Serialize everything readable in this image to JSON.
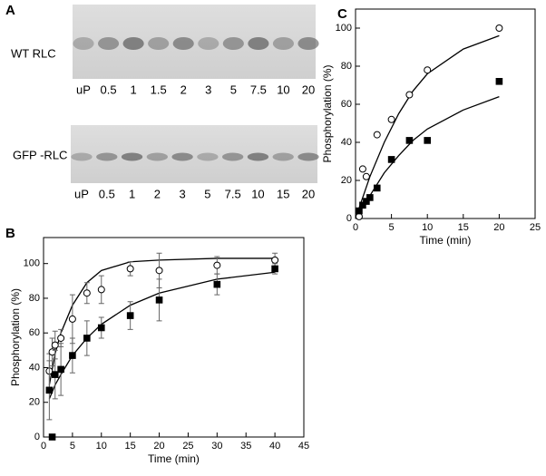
{
  "panel_labels": [
    "A",
    "B",
    "C"
  ],
  "gels": [
    {
      "label": "WT RLC",
      "lanes": [
        "uP",
        "0.5",
        "1",
        "1.5",
        "2",
        "3",
        "5",
        "7.5",
        "10",
        "20"
      ]
    },
    {
      "label": "GFP -RLC",
      "lanes": [
        "uP",
        "0.5",
        "1",
        "2",
        "3",
        "5",
        "7.5",
        "10",
        "15",
        "20"
      ]
    }
  ],
  "chart_data": [
    {
      "type": "scatter",
      "xlabel": "Time (min)",
      "ylabel": "Phosphorylation (%)",
      "xlim": [
        0,
        45
      ],
      "xticks": [
        0,
        5,
        10,
        15,
        20,
        25,
        30,
        35,
        40,
        45
      ],
      "ylim": [
        0,
        115
      ],
      "yticks": [
        0,
        20,
        40,
        60,
        80,
        100
      ],
      "series": [
        {
          "mode": "markers",
          "marker": "circle",
          "fill": "none",
          "color": "#000000",
          "x": [
            1,
            1.5,
            2,
            3,
            5,
            7.5,
            10,
            15,
            20,
            30,
            40
          ],
          "values": [
            38,
            49,
            53,
            57,
            68,
            83,
            85,
            97,
            96,
            99,
            102
          ],
          "errors": [
            10,
            8,
            8,
            5,
            14,
            6,
            8,
            4,
            10,
            5,
            4
          ]
        },
        {
          "mode": "markers",
          "marker": "square",
          "fill": "#000000",
          "color": "#000000",
          "x": [
            1,
            1.5,
            2,
            3,
            5,
            7.5,
            10,
            15,
            20,
            30,
            40
          ],
          "values": [
            27,
            0,
            36,
            39,
            47,
            57,
            63,
            70,
            79,
            88,
            97
          ],
          "errors": [
            17,
            null,
            14,
            15,
            10,
            10,
            6,
            8,
            12,
            6,
            3
          ]
        },
        {
          "mode": "line",
          "color": "#000000",
          "x": [
            1,
            2,
            3,
            5,
            7.5,
            10,
            15,
            20,
            30,
            40
          ],
          "values": [
            30,
            48,
            60,
            76,
            89,
            96,
            101,
            102,
            103,
            103
          ]
        },
        {
          "mode": "line",
          "color": "#000000",
          "x": [
            1,
            2,
            3,
            5,
            7.5,
            10,
            15,
            20,
            30,
            40
          ],
          "values": [
            22,
            30,
            36,
            47,
            57,
            65,
            76,
            83,
            91,
            95
          ]
        }
      ]
    },
    {
      "type": "scatter",
      "xlabel": "Time (min)",
      "ylabel": "Phosphorylation (%)",
      "xlim": [
        0,
        25
      ],
      "xticks": [
        0,
        5,
        10,
        15,
        20,
        25
      ],
      "ylim": [
        0,
        110
      ],
      "yticks": [
        0,
        20,
        40,
        60,
        80,
        100
      ],
      "series": [
        {
          "mode": "markers",
          "marker": "circle",
          "fill": "none",
          "color": "#000000",
          "x": [
            0.5,
            1,
            1.5,
            3,
            5,
            7.5,
            10,
            20
          ],
          "values": [
            1,
            26,
            22,
            44,
            52,
            65,
            78,
            100
          ]
        },
        {
          "mode": "markers",
          "marker": "square",
          "fill": "#000000",
          "color": "#000000",
          "x": [
            0.5,
            1,
            1.5,
            2,
            3,
            5,
            7.5,
            10,
            20
          ],
          "values": [
            4,
            7,
            9,
            11,
            16,
            31,
            41,
            41,
            72
          ]
        },
        {
          "mode": "line",
          "color": "#000000",
          "x": [
            0,
            2,
            4,
            6,
            8,
            10,
            15,
            20
          ],
          "values": [
            0,
            22,
            40,
            55,
            67,
            76,
            89,
            96
          ]
        },
        {
          "mode": "line",
          "color": "#000000",
          "x": [
            0,
            2,
            4,
            6,
            8,
            10,
            15,
            20
          ],
          "values": [
            0,
            12,
            24,
            33,
            41,
            47,
            57,
            64
          ]
        }
      ]
    }
  ]
}
